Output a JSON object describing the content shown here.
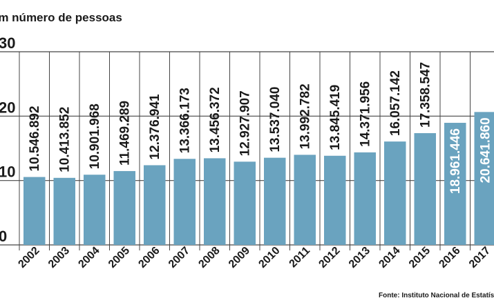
{
  "chart_data": {
    "type": "bar",
    "subtitle": "Em número de pessoas",
    "source": "Fonte: Instituto Nacional de Estatística",
    "categories": [
      "2002",
      "2003",
      "2004",
      "2005",
      "2006",
      "2007",
      "2008",
      "2009",
      "2010",
      "2011",
      "2012",
      "2013",
      "2014",
      "2015",
      "2016",
      "2017"
    ],
    "values": [
      10546892,
      10413852,
      10901968,
      11469289,
      12376941,
      13366173,
      13456372,
      12927907,
      13537040,
      13992782,
      13845419,
      14371956,
      16057142,
      17358547,
      18961446,
      20641860
    ],
    "value_labels": [
      "10.546.892",
      "10.413.852",
      "10.901.968",
      "11.469.289",
      "12.376.941",
      "13.366.173",
      "13.456.372",
      "12.927.907",
      "13.537.040",
      "13.992.782",
      "13.845.419",
      "14.371.956",
      "16.057.142",
      "17.358.547",
      "18.961.446",
      "20.641.860"
    ],
    "y_ticks": [
      0,
      10,
      20,
      30
    ],
    "y_tick_labels": [
      "0",
      "10",
      "20",
      "30"
    ],
    "ylim": [
      0,
      30000000
    ],
    "colors": {
      "bar": "#6aa3bf",
      "grid": "#444444",
      "label_dark": "#1a1a1a",
      "label_light": "#ffffff"
    },
    "inside_label_categories": [
      "2016",
      "2017"
    ],
    "grid": true
  }
}
